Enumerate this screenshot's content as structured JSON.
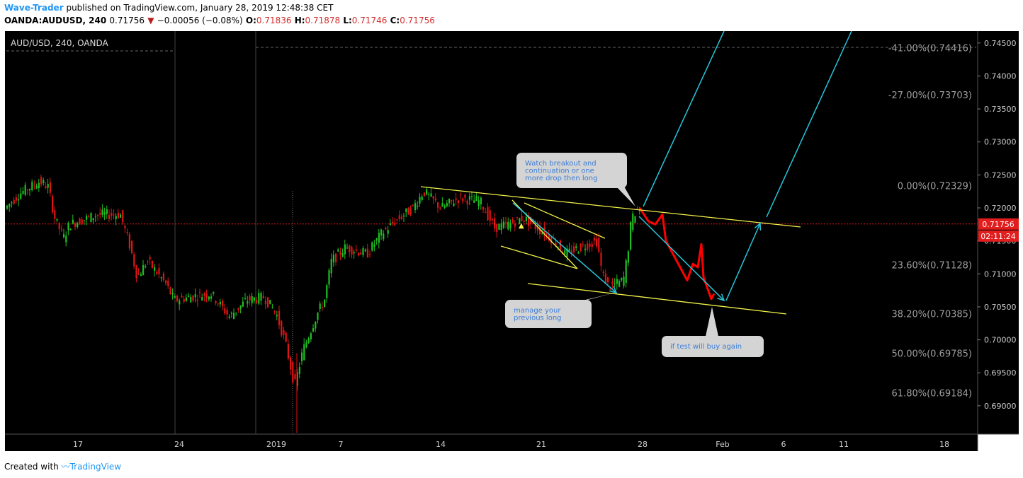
{
  "header": {
    "author": "Wave-Trader",
    "published_text": "published on TradingView.com, January 28, 2019 12:48:38 CET",
    "symbol": "OANDA:AUDUSD, 240",
    "last": "0.71756",
    "change": "−0.00056 (−0.08%)",
    "o_label": "O:",
    "o": "0.71836",
    "h_label": "H:",
    "h": "0.71878",
    "l_label": "L:",
    "l": "0.71746",
    "c_label": "C:",
    "c": "0.71756"
  },
  "footer": {
    "created_text": "Created with",
    "brand": "TradingView"
  },
  "chart_data": {
    "type": "candlestick",
    "legend_label": "AUD/USD, 240, OANDA",
    "y_ticks": [
      "0.74500",
      "0.74000",
      "0.73500",
      "0.73000",
      "0.72500",
      "0.72000",
      "0.71500",
      "0.71000",
      "0.70500",
      "0.70000",
      "0.69500",
      "0.69000"
    ],
    "y_tick_values": [
      0.745,
      0.74,
      0.735,
      0.73,
      0.725,
      0.72,
      0.715,
      0.71,
      0.705,
      0.7,
      0.695,
      0.69
    ],
    "ylim": [
      0.6857,
      0.7468
    ],
    "x_ticks": [
      "17",
      "24",
      "2019",
      "7",
      "14",
      "21",
      "28",
      "Feb",
      "6",
      "11",
      "18"
    ],
    "current_price": "0.71756",
    "countdown": "02:11:24",
    "fib_levels": [
      {
        "label": "-41.00%(0.74416)",
        "value": 0.74416
      },
      {
        "label": "-27.00%(0.73703)",
        "value": 0.73703
      },
      {
        "label": "0.00%(0.72329)",
        "value": 0.72329
      },
      {
        "label": "23.60%(0.71128)",
        "value": 0.71128
      },
      {
        "label": "38.20%(0.70385)",
        "value": 0.70385
      },
      {
        "label": "50.00%(0.69785)",
        "value": 0.69785
      },
      {
        "label": "61.80%(0.69184)",
        "value": 0.69184
      }
    ],
    "annotations": [
      {
        "id": "watch",
        "lines": [
          "Watch breakout and",
          "continuation or one",
          "more drop then long"
        ]
      },
      {
        "id": "manage",
        "lines": [
          "manage your",
          "previous long"
        ]
      },
      {
        "id": "test",
        "lines": [
          "if test will buy again"
        ]
      }
    ],
    "colors": {
      "up": "#1fbf23",
      "down": "#e01414",
      "projection": "#ff0000",
      "trend": "#f2f24a",
      "arrow": "#26c6da",
      "bg": "#000000",
      "price_tag": "#e11d1d"
    }
  }
}
